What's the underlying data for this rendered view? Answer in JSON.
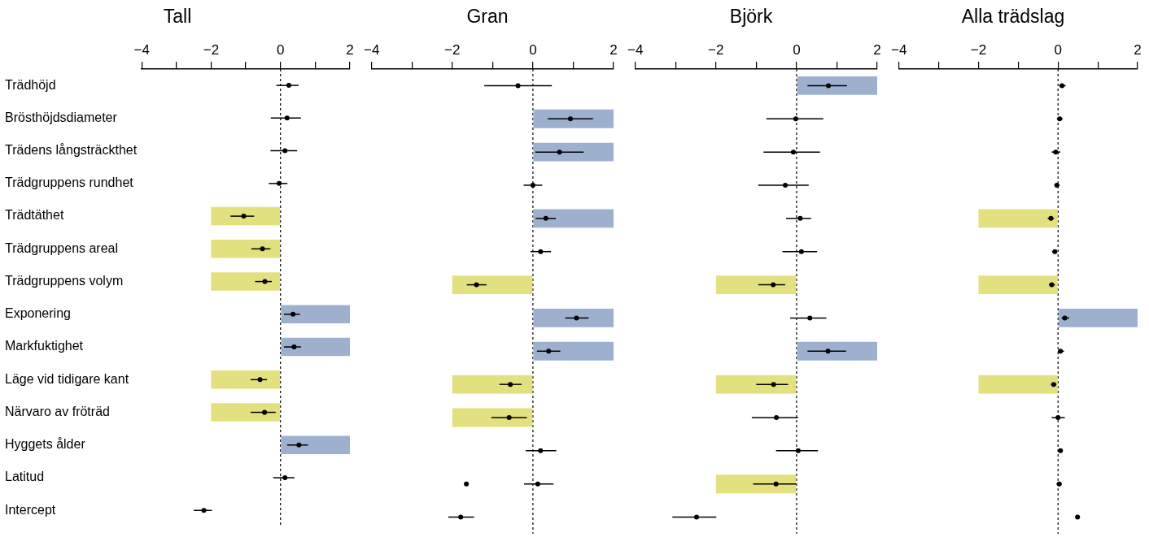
{
  "chart_data": [
    {
      "type": "bar",
      "orientation": "horizontal",
      "title": "Tall",
      "categories": [
        "Trädhöjd",
        "Brösthöjdsdiameter",
        "Trädens långsträckthet",
        "Trädgruppens rundhet",
        "Trädtäthet",
        "Trädgruppens areal",
        "Trädgruppens volym",
        "Exponering",
        "Markfuktighet",
        "Läge vid tidigare kant",
        "Närvaro av fröträd",
        "Hyggets ålder",
        "Latitud",
        "Intercept"
      ],
      "xlim": [
        -4,
        2
      ],
      "xticks": [
        -4,
        {
          "value": -3,
          "label": null
        },
        -2,
        {
          "value": -1,
          "label": null
        },
        0,
        {
          "value": 1,
          "label": null
        },
        2
      ],
      "ref_lines": [
        {
          "axis": "x",
          "value": 0,
          "line_style": "dashed",
          "color": "#000000"
        }
      ],
      "legend": false,
      "grid": false,
      "marker": "circle",
      "series": [
        {
          "values": [
            null,
            null,
            null,
            null,
            -2,
            -2,
            -2,
            2,
            2,
            -2,
            -2,
            2,
            null,
            null
          ],
          "colors": [
            "#e3e07f",
            "#e3e07f",
            "#e3e07f",
            "#e3e07f",
            "#e3e07f",
            "#e3e07f",
            "#e3e07f",
            "#9db1cf",
            "#9db1cf",
            "#e3e07f",
            "#e3e07f",
            "#9db1cf",
            "#9db1cf",
            "#9db1cf"
          ]
        },
        {
          "type": "scatter",
          "color": "#000000",
          "values": [
            0.24,
            0.19,
            0.13,
            -0.04,
            -1.06,
            -0.52,
            -0.45,
            0.36,
            0.39,
            -0.59,
            -0.46,
            0.53,
            0.13,
            -2.21
          ],
          "errors": [
            [
              -0.12,
              0.52
            ],
            [
              -0.28,
              0.59
            ],
            [
              -0.29,
              0.48
            ],
            [
              -0.34,
              0.2
            ],
            [
              -1.44,
              -0.76
            ],
            [
              -0.84,
              -0.29
            ],
            [
              -0.73,
              -0.25
            ],
            [
              0.1,
              0.56
            ],
            [
              0.1,
              0.59
            ],
            [
              -0.86,
              -0.39
            ],
            [
              -0.86,
              -0.14
            ],
            [
              0.19,
              0.79
            ],
            [
              -0.21,
              0.4
            ],
            [
              -2.5,
              -1.98
            ]
          ]
        }
      ]
    },
    {
      "type": "bar",
      "orientation": "horizontal",
      "title": "Gran",
      "tick_labels": "x",
      "categories": [
        null,
        null,
        null,
        null,
        null,
        null,
        null,
        null,
        null,
        null,
        null,
        null,
        null,
        null
      ],
      "xlim": [
        -4,
        2
      ],
      "xticks": [
        -4,
        {
          "value": -3,
          "label": null
        },
        -2,
        {
          "value": -1,
          "label": null
        },
        0,
        {
          "value": 1,
          "label": null
        },
        2
      ],
      "ref_lines": [
        {
          "axis": "x",
          "value": 0,
          "line_style": "dashed",
          "color": "#000000"
        }
      ],
      "legend": false,
      "grid": false,
      "marker": "circle",
      "series": [
        {
          "values": [
            null,
            2,
            2,
            null,
            2,
            null,
            -2,
            2,
            2,
            -2,
            -2,
            null,
            null,
            null
          ],
          "colors": [
            "#9db1cf",
            "#9db1cf",
            "#9db1cf",
            "#9db1cf",
            "#9db1cf",
            "#9db1cf",
            "#e3e07f",
            "#9db1cf",
            "#9db1cf",
            "#e3e07f",
            "#e3e07f",
            "#9db1cf",
            "#9db1cf",
            "#9db1cf"
          ]
        },
        {
          "type": "scatter",
          "color": "#000000",
          "values": [
            -0.37,
            0.93,
            0.66,
            0,
            0.32,
            0.19,
            -1.4,
            1.08,
            0.39,
            -0.56,
            -0.59,
            0.19,
            0.12,
            -1.79
          ],
          "errors": [
            [
              -1.21,
              0.47
            ],
            [
              0.37,
              1.49
            ],
            [
              0.06,
              1.26
            ],
            [
              -0.23,
              0.23
            ],
            [
              0.07,
              0.57
            ],
            [
              -0.06,
              0.45
            ],
            [
              -1.64,
              -1.15
            ],
            [
              0.8,
              1.38
            ],
            [
              0.1,
              0.68
            ],
            [
              -0.83,
              -0.28
            ],
            [
              -1.03,
              -0.15
            ],
            [
              -0.18,
              0.58
            ],
            [
              -0.22,
              0.51
            ],
            [
              -2.1,
              -1.46
            ]
          ]
        },
        {
          "type": "scatter",
          "color": "#000000",
          "values": [
            null,
            null,
            null,
            null,
            null,
            null,
            null,
            null,
            null,
            null,
            null,
            null,
            -1.65,
            null
          ]
        }
      ]
    },
    {
      "type": "bar",
      "orientation": "horizontal",
      "title": "Björk",
      "tick_labels": "x",
      "categories": [
        null,
        null,
        null,
        null,
        null,
        null,
        null,
        null,
        null,
        null,
        null,
        null,
        null,
        null
      ],
      "xlim": [
        -4,
        2
      ],
      "xticks": [
        -4,
        {
          "value": -3,
          "label": null
        },
        -2,
        {
          "value": -1,
          "label": null
        },
        0,
        {
          "value": 1,
          "label": null
        },
        2
      ],
      "ref_lines": [
        {
          "axis": "x",
          "value": 0,
          "line_style": "dashed",
          "color": "#000000"
        }
      ],
      "legend": false,
      "grid": false,
      "marker": "circle",
      "series": [
        {
          "values": [
            2,
            null,
            null,
            null,
            null,
            null,
            -2,
            null,
            2,
            -2,
            null,
            null,
            -2,
            null
          ],
          "colors": [
            "#9db1cf",
            "#9db1cf",
            "#9db1cf",
            "#9db1cf",
            "#9db1cf",
            "#9db1cf",
            "#e3e07f",
            "#9db1cf",
            "#9db1cf",
            "#e3e07f",
            "#e3e07f",
            "#9db1cf",
            "#e3e07f",
            "#9db1cf"
          ]
        },
        {
          "type": "scatter",
          "color": "#000000",
          "values": [
            0.79,
            -0.02,
            -0.08,
            -0.28,
            0.09,
            0.12,
            -0.58,
            0.33,
            0.78,
            -0.57,
            -0.5,
            0.04,
            -0.51,
            -2.48
          ],
          "errors": [
            [
              0.27,
              1.25
            ],
            [
              -0.75,
              0.66
            ],
            [
              -0.82,
              0.58
            ],
            [
              -0.95,
              0.3
            ],
            [
              -0.26,
              0.36
            ],
            [
              -0.35,
              0.51
            ],
            [
              -0.95,
              -0.28
            ],
            [
              -0.16,
              0.74
            ],
            [
              0.27,
              1.23
            ],
            [
              -1,
              -0.21
            ],
            [
              -1.11,
              0.04
            ],
            [
              -0.51,
              0.53
            ],
            [
              -1.08,
              0
            ],
            [
              -3.08,
              -1.99
            ]
          ]
        }
      ]
    },
    {
      "type": "bar",
      "orientation": "horizontal",
      "title": "Alla trädslag",
      "tick_labels": "x",
      "categories": [
        null,
        null,
        null,
        null,
        null,
        null,
        null,
        null,
        null,
        null,
        null,
        null,
        null,
        null
      ],
      "xlim": [
        -4,
        2
      ],
      "xticks": [
        -4,
        {
          "value": -3,
          "label": null
        },
        -2,
        {
          "value": -1,
          "label": null
        },
        0,
        {
          "value": 1,
          "label": null
        },
        2
      ],
      "ref_lines": [
        {
          "axis": "x",
          "value": 0,
          "line_style": "dashed",
          "color": "#000000"
        }
      ],
      "legend": false,
      "grid": false,
      "marker": "circle",
      "series": [
        {
          "values": [
            null,
            null,
            null,
            null,
            -2,
            null,
            -2,
            2,
            null,
            -2,
            null,
            null,
            null,
            null
          ],
          "colors": [
            "#e3e07f",
            "#e3e07f",
            "#e3e07f",
            "#e3e07f",
            "#e3e07f",
            "#e3e07f",
            "#e3e07f",
            "#9db1cf",
            "#e3e07f",
            "#e3e07f",
            "#e3e07f",
            "#e3e07f",
            "#e3e07f",
            "#e3e07f"
          ]
        },
        {
          "type": "scatter",
          "color": "#000000",
          "values": [
            0.1,
            0.04,
            -0.06,
            -0.03,
            -0.18,
            -0.08,
            -0.16,
            0.17,
            0.06,
            -0.11,
            0,
            0.06,
            0.03,
            0.49
          ],
          "errors": [
            [
              0.03,
              0.19
            ],
            [
              -0.03,
              0.12
            ],
            [
              -0.16,
              0.06
            ],
            [
              -0.09,
              0.04
            ],
            [
              -0.26,
              -0.1
            ],
            [
              -0.15,
              -0.02
            ],
            [
              -0.23,
              -0.08
            ],
            [
              0.09,
              0.28
            ],
            [
              0,
              0.15
            ],
            [
              -0.18,
              -0.04
            ],
            [
              -0.16,
              0.17
            ],
            [
              -0.01,
              0.12
            ],
            [
              -0.04,
              0.09
            ],
            [
              0.43,
              0.55
            ]
          ]
        }
      ]
    }
  ]
}
